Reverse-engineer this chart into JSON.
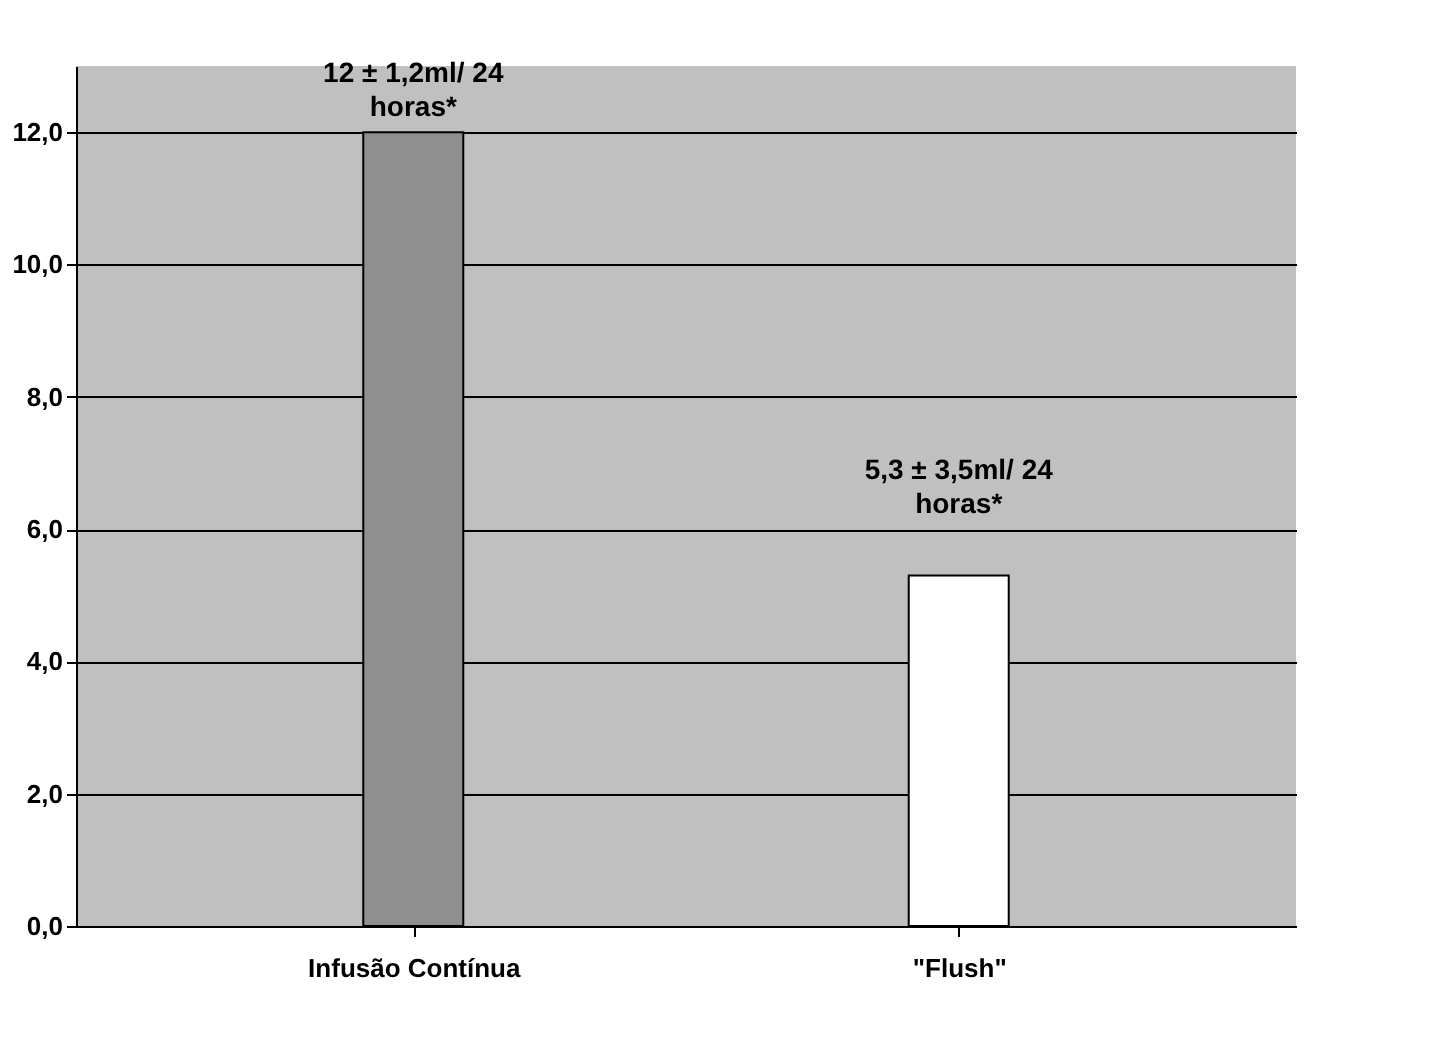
{
  "chart_data": {
    "type": "bar",
    "categories": [
      "Infusão Contínua",
      "\"Flush\""
    ],
    "values": [
      12.0,
      5.3
    ],
    "colors": [
      "#8f8f8f",
      "#ffffff"
    ],
    "ylim": [
      0,
      13
    ],
    "yticks": [
      {
        "value": 0,
        "label": "0,0"
      },
      {
        "value": 2,
        "label": "2,0"
      },
      {
        "value": 4,
        "label": "4,0"
      },
      {
        "value": 6,
        "label": "6,0"
      },
      {
        "value": 8,
        "label": "8,0"
      },
      {
        "value": 10,
        "label": "10,0"
      },
      {
        "value": 12,
        "label": "12,0"
      }
    ],
    "grid": "y",
    "annotations": [
      {
        "text": "12 ± 1,2ml/ 24 horas*",
        "x": "Infusão Contínua",
        "y": 12.0
      },
      {
        "text": "5,3 ± 3,5ml/ 24 horas*",
        "x": "\"Flush\"",
        "y": 5.3
      }
    ]
  }
}
